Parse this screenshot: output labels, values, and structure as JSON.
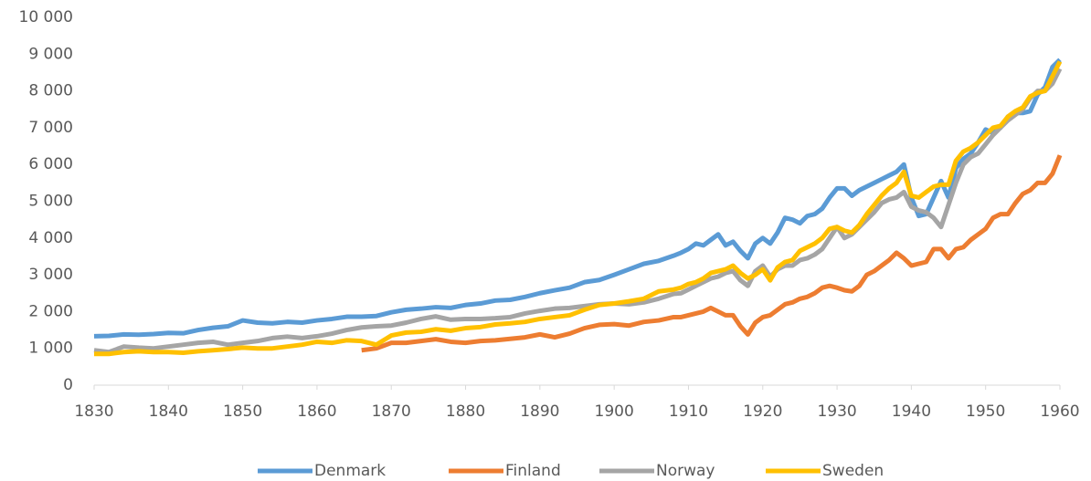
{
  "chart_data": {
    "type": "line",
    "x": [
      1830,
      1832,
      1834,
      1836,
      1838,
      1840,
      1842,
      1844,
      1846,
      1848,
      1850,
      1852,
      1854,
      1856,
      1858,
      1860,
      1862,
      1864,
      1866,
      1868,
      1870,
      1872,
      1874,
      1876,
      1878,
      1880,
      1882,
      1884,
      1886,
      1888,
      1890,
      1892,
      1894,
      1896,
      1898,
      1900,
      1902,
      1904,
      1906,
      1908,
      1909,
      1910,
      1911,
      1912,
      1913,
      1914,
      1915,
      1916,
      1917,
      1918,
      1919,
      1920,
      1921,
      1922,
      1923,
      1924,
      1925,
      1926,
      1927,
      1928,
      1929,
      1930,
      1931,
      1932,
      1933,
      1934,
      1935,
      1936,
      1937,
      1938,
      1939,
      1940,
      1941,
      1942,
      1943,
      1944,
      1945,
      1946,
      1947,
      1948,
      1949,
      1950,
      1951,
      1952,
      1953,
      1954,
      1955,
      1956,
      1957,
      1958,
      1959,
      1960
    ],
    "series": [
      {
        "name": "Denmark",
        "color": "#5b9bd5",
        "values": [
          1330,
          1340,
          1380,
          1370,
          1390,
          1420,
          1410,
          1500,
          1560,
          1600,
          1760,
          1700,
          1680,
          1720,
          1700,
          1760,
          1800,
          1860,
          1860,
          1880,
          1980,
          2050,
          2080,
          2120,
          2100,
          2180,
          2220,
          2300,
          2320,
          2400,
          2500,
          2580,
          2650,
          2800,
          2860,
          3000,
          3150,
          3300,
          3380,
          3520,
          3600,
          3700,
          3850,
          3800,
          3950,
          4100,
          3800,
          3900,
          3650,
          3450,
          3850,
          4000,
          3850,
          4150,
          4550,
          4500,
          4400,
          4600,
          4650,
          4800,
          5100,
          5350,
          5350,
          5150,
          5300,
          5400,
          5500,
          5600,
          5700,
          5800,
          6000,
          5100,
          4600,
          4650,
          5100,
          5550,
          5100,
          5900,
          6150,
          6300,
          6600,
          6950,
          6850,
          7000,
          7300,
          7400,
          7400,
          7450,
          7900,
          8100,
          8650,
          8850
        ]
      },
      {
        "name": "Finland",
        "color": "#ed7d31",
        "values": [
          null,
          null,
          null,
          null,
          null,
          null,
          null,
          null,
          null,
          null,
          null,
          null,
          null,
          null,
          null,
          null,
          null,
          null,
          950,
          1000,
          1150,
          1150,
          1200,
          1250,
          1180,
          1150,
          1200,
          1220,
          1260,
          1300,
          1380,
          1300,
          1400,
          1550,
          1640,
          1660,
          1620,
          1720,
          1760,
          1850,
          1850,
          1900,
          1950,
          2000,
          2100,
          2000,
          1900,
          1900,
          1600,
          1380,
          1700,
          1850,
          1900,
          2050,
          2200,
          2250,
          2350,
          2400,
          2500,
          2650,
          2700,
          2650,
          2580,
          2550,
          2700,
          3000,
          3100,
          3250,
          3400,
          3600,
          3450,
          3250,
          3300,
          3350,
          3700,
          3700,
          3450,
          3700,
          3750,
          3950,
          4100,
          4250,
          4550,
          4650,
          4650,
          4950,
          5200,
          5300,
          5500,
          5500,
          5750,
          6250
        ]
      },
      {
        "name": "Norway",
        "color": "#a5a5a5",
        "values": [
          950,
          900,
          1050,
          1020,
          1000,
          1050,
          1100,
          1150,
          1180,
          1100,
          1150,
          1200,
          1280,
          1320,
          1280,
          1330,
          1400,
          1500,
          1570,
          1600,
          1620,
          1700,
          1800,
          1870,
          1780,
          1800,
          1800,
          1820,
          1850,
          1950,
          2020,
          2080,
          2100,
          2150,
          2200,
          2220,
          2200,
          2250,
          2350,
          2480,
          2500,
          2600,
          2700,
          2800,
          2900,
          2950,
          3050,
          3100,
          2850,
          2700,
          3100,
          3250,
          2950,
          3150,
          3250,
          3250,
          3400,
          3450,
          3550,
          3700,
          4000,
          4300,
          4000,
          4100,
          4300,
          4500,
          4700,
          4950,
          5050,
          5100,
          5250,
          4850,
          4750,
          4700,
          4550,
          4300,
          4900,
          5500,
          6000,
          6200,
          6300,
          6550,
          6800,
          7000,
          7200,
          7350,
          7500,
          7800,
          8000,
          8000,
          8200,
          8600
        ]
      },
      {
        "name": "Sweden",
        "color": "#ffc000",
        "values": [
          850,
          850,
          900,
          920,
          900,
          900,
          880,
          920,
          950,
          980,
          1020,
          1000,
          1000,
          1050,
          1100,
          1180,
          1150,
          1220,
          1200,
          1100,
          1350,
          1430,
          1450,
          1520,
          1480,
          1550,
          1580,
          1650,
          1680,
          1720,
          1800,
          1850,
          1900,
          2050,
          2180,
          2220,
          2280,
          2350,
          2550,
          2600,
          2650,
          2750,
          2800,
          2900,
          3050,
          3100,
          3150,
          3250,
          3050,
          2900,
          3000,
          3150,
          2850,
          3200,
          3350,
          3400,
          3650,
          3750,
          3850,
          4000,
          4250,
          4300,
          4200,
          4150,
          4350,
          4650,
          4900,
          5150,
          5350,
          5500,
          5800,
          5150,
          5100,
          5250,
          5400,
          5450,
          5450,
          6100,
          6350,
          6450,
          6600,
          6800,
          7000,
          7050,
          7300,
          7450,
          7550,
          7850,
          7950,
          8000,
          8400,
          8800
        ]
      }
    ],
    "xlim": [
      1830,
      1960
    ],
    "xticks": [
      1830,
      1840,
      1850,
      1860,
      1870,
      1880,
      1890,
      1900,
      1910,
      1920,
      1930,
      1940,
      1950,
      1960
    ],
    "ylim": [
      0,
      10000
    ],
    "yticks": [
      0,
      {
        "value": 1000,
        "label": "1 000"
      },
      {
        "value": 2000,
        "label": "2 000"
      },
      {
        "value": 3000,
        "label": "3 000"
      },
      {
        "value": 4000,
        "label": "4 000"
      },
      {
        "value": 5000,
        "label": "5 000"
      },
      {
        "value": 6000,
        "label": "6 000"
      },
      {
        "value": 7000,
        "label": "7 000"
      },
      {
        "value": 8000,
        "label": "8 000"
      },
      {
        "value": 9000,
        "label": "9 000"
      },
      {
        "value": 10000,
        "label": "10 000"
      }
    ],
    "grid": false,
    "legend": "bottom"
  }
}
